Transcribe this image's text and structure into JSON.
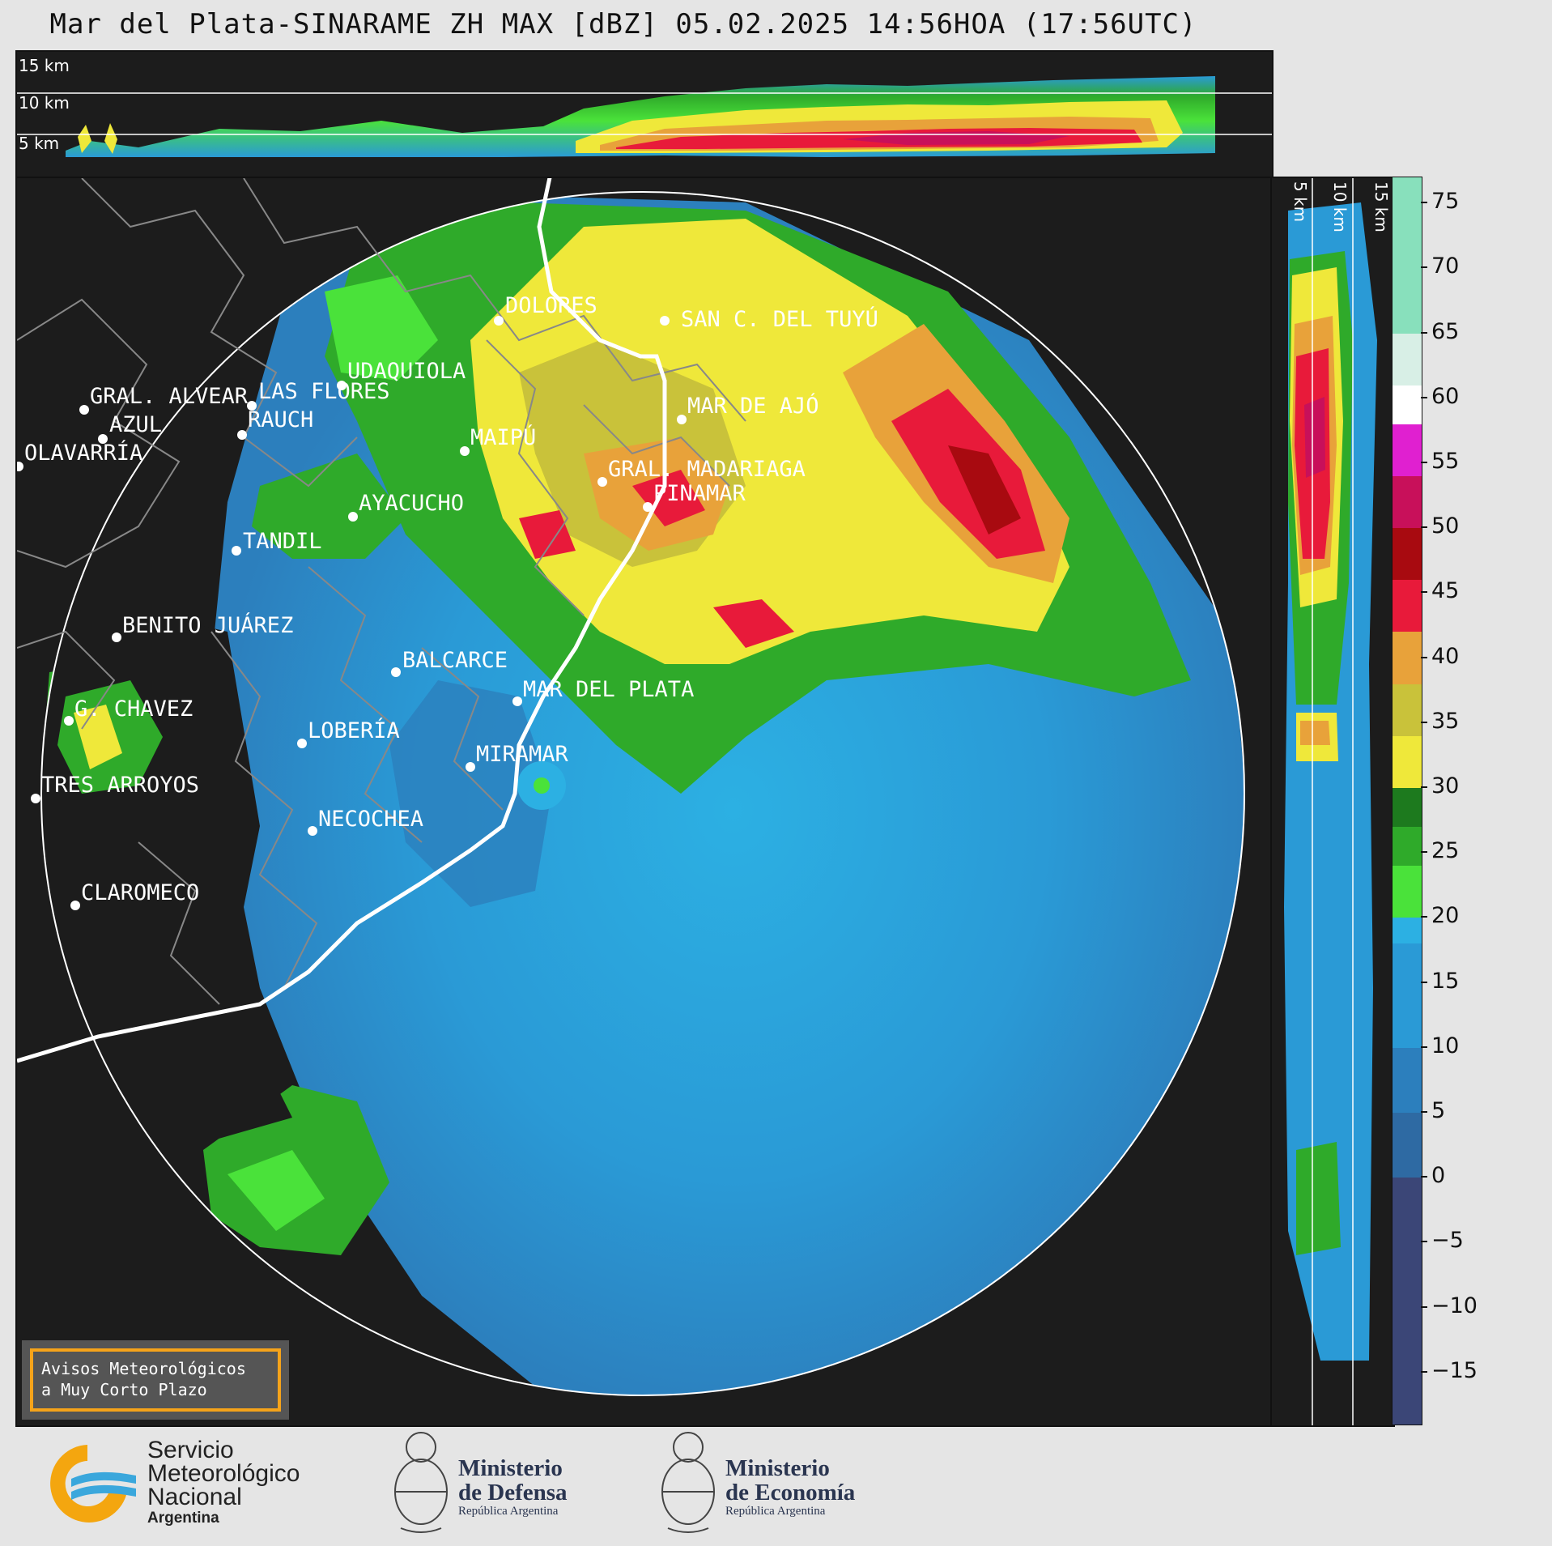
{
  "title": "Mar del Plata-SINARAME ZH MAX [dBZ] 05.02.2025 14:56HOA (17:56UTC)",
  "height_labels": [
    "15 km",
    "10 km",
    "5 km"
  ],
  "colorbar": {
    "min": -19,
    "max": 77,
    "ticks": [
      "75",
      "70",
      "65",
      "60",
      "55",
      "50",
      "45",
      "40",
      "35",
      "30",
      "25",
      "20",
      "15",
      "10",
      "5",
      "0",
      "−5",
      "−10",
      "−15"
    ],
    "tick_values": [
      75,
      70,
      65,
      60,
      55,
      50,
      45,
      40,
      35,
      30,
      25,
      20,
      15,
      10,
      5,
      0,
      -5,
      -10,
      -15
    ],
    "colors": [
      {
        "from": -19,
        "to": 0,
        "color": "#3b4677"
      },
      {
        "from": 0,
        "to": 5,
        "color": "#2e6aa3"
      },
      {
        "from": 5,
        "to": 10,
        "color": "#2c7fbd"
      },
      {
        "from": 10,
        "to": 18,
        "color": "#2a9ad6"
      },
      {
        "from": 18,
        "to": 20,
        "color": "#2cb0e3"
      },
      {
        "from": 20,
        "to": 24,
        "color": "#4ae23a"
      },
      {
        "from": 24,
        "to": 27,
        "color": "#2faa2a"
      },
      {
        "from": 27,
        "to": 30,
        "color": "#1d7a1e"
      },
      {
        "from": 30,
        "to": 34,
        "color": "#efe83a"
      },
      {
        "from": 34,
        "to": 38,
        "color": "#c9c23a"
      },
      {
        "from": 38,
        "to": 42,
        "color": "#e8a23a"
      },
      {
        "from": 42,
        "to": 46,
        "color": "#e81a3a"
      },
      {
        "from": 46,
        "to": 50,
        "color": "#a80a10"
      },
      {
        "from": 50,
        "to": 54,
        "color": "#c8105a"
      },
      {
        "from": 54,
        "to": 58,
        "color": "#e020d0"
      },
      {
        "from": 58,
        "to": 61,
        "color": "#ffffff"
      },
      {
        "from": 61,
        "to": 65,
        "color": "#d8efe6"
      },
      {
        "from": 65,
        "to": 77,
        "color": "#88e0bc"
      }
    ]
  },
  "cities": [
    {
      "name": "GRAL. ALVEAR"
    },
    {
      "name": "LAS FLORES"
    },
    {
      "name": "DOLORES"
    },
    {
      "name": "SAN C. DEL TUYÚ"
    },
    {
      "name": "UDAQUIOLA"
    },
    {
      "name": "AZUL"
    },
    {
      "name": "RAUCH"
    },
    {
      "name": "MAR DE AJÓ"
    },
    {
      "name": "OLAVARRÍA"
    },
    {
      "name": "MAIPÚ"
    },
    {
      "name": "GRAL. MADARIAGA"
    },
    {
      "name": "PINAMAR"
    },
    {
      "name": "AYACUCHO"
    },
    {
      "name": "TANDIL"
    },
    {
      "name": "BENITO JUÁREZ"
    },
    {
      "name": "BALCARCE"
    },
    {
      "name": "MAR DEL PLATA"
    },
    {
      "name": "G. CHAVEZ"
    },
    {
      "name": "LOBERÍA"
    },
    {
      "name": "MIRAMAR"
    },
    {
      "name": "TRES ARROYOS"
    },
    {
      "name": "NECOCHEA"
    },
    {
      "name": "CLAROMECO"
    }
  ],
  "warning_box": {
    "line1": "Avisos Meteorológicos",
    "line2": "a Muy Corto Plazo"
  },
  "logos": {
    "smn": {
      "line1": "Servicio",
      "line2": "Meteorológico",
      "line3": "Nacional",
      "line4": "Argentina"
    },
    "defensa": {
      "line1": "Ministerio",
      "line2": "de Defensa",
      "line3": "República Argentina"
    },
    "economia": {
      "line1": "Ministerio",
      "line2": "de Economía",
      "line3": "República Argentina"
    }
  }
}
